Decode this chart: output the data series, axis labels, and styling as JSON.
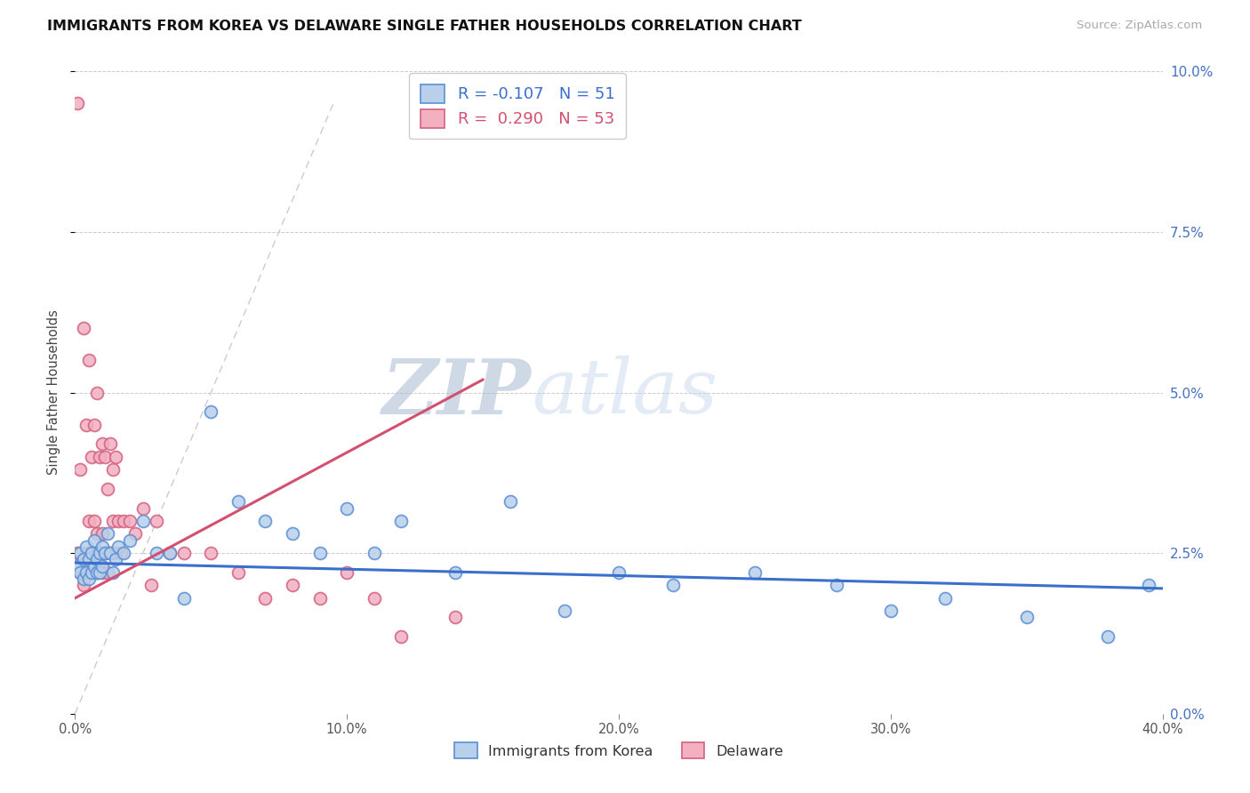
{
  "title": "IMMIGRANTS FROM KOREA VS DELAWARE SINGLE FATHER HOUSEHOLDS CORRELATION CHART",
  "source": "Source: ZipAtlas.com",
  "ylabel": "Single Father Households",
  "legend_label_1": "Immigrants from Korea",
  "legend_label_2": "Delaware",
  "R1": -0.107,
  "N1": 51,
  "R2": 0.29,
  "N2": 53,
  "color_korea_fill": "#b8d0ea",
  "color_korea_edge": "#5b8fd4",
  "color_delaware_fill": "#f2b0c0",
  "color_delaware_edge": "#d46080",
  "color_korea_line": "#3b6fcc",
  "color_delaware_line": "#d45070",
  "color_diag_line": "#cccccc",
  "watermark_zip": "ZIP",
  "watermark_atlas": "atlas",
  "xlim": [
    0.0,
    0.4
  ],
  "ylim": [
    0.0,
    0.1
  ],
  "korea_x": [
    0.001,
    0.002,
    0.002,
    0.003,
    0.003,
    0.004,
    0.004,
    0.005,
    0.005,
    0.006,
    0.006,
    0.007,
    0.007,
    0.008,
    0.008,
    0.009,
    0.009,
    0.01,
    0.01,
    0.011,
    0.012,
    0.013,
    0.014,
    0.015,
    0.016,
    0.018,
    0.02,
    0.025,
    0.03,
    0.035,
    0.04,
    0.05,
    0.06,
    0.07,
    0.08,
    0.09,
    0.1,
    0.11,
    0.12,
    0.14,
    0.16,
    0.18,
    0.2,
    0.22,
    0.25,
    0.28,
    0.3,
    0.32,
    0.35,
    0.38,
    0.395
  ],
  "korea_y": [
    0.023,
    0.025,
    0.022,
    0.024,
    0.021,
    0.026,
    0.022,
    0.024,
    0.021,
    0.025,
    0.022,
    0.027,
    0.023,
    0.022,
    0.024,
    0.025,
    0.022,
    0.026,
    0.023,
    0.025,
    0.028,
    0.025,
    0.022,
    0.024,
    0.026,
    0.025,
    0.027,
    0.03,
    0.025,
    0.025,
    0.018,
    0.047,
    0.033,
    0.03,
    0.028,
    0.025,
    0.032,
    0.025,
    0.03,
    0.022,
    0.033,
    0.016,
    0.022,
    0.02,
    0.022,
    0.02,
    0.016,
    0.018,
    0.015,
    0.012,
    0.02
  ],
  "delaware_x": [
    0.001,
    0.001,
    0.002,
    0.002,
    0.003,
    0.003,
    0.004,
    0.004,
    0.005,
    0.005,
    0.005,
    0.006,
    0.006,
    0.007,
    0.007,
    0.007,
    0.008,
    0.008,
    0.008,
    0.009,
    0.009,
    0.01,
    0.01,
    0.01,
    0.011,
    0.011,
    0.012,
    0.012,
    0.013,
    0.013,
    0.014,
    0.014,
    0.015,
    0.015,
    0.016,
    0.017,
    0.018,
    0.02,
    0.022,
    0.025,
    0.028,
    0.03,
    0.035,
    0.04,
    0.05,
    0.06,
    0.07,
    0.08,
    0.09,
    0.1,
    0.11,
    0.12,
    0.14
  ],
  "delaware_y": [
    0.095,
    0.025,
    0.038,
    0.022,
    0.06,
    0.02,
    0.045,
    0.025,
    0.055,
    0.03,
    0.022,
    0.04,
    0.025,
    0.045,
    0.03,
    0.025,
    0.05,
    0.028,
    0.022,
    0.04,
    0.025,
    0.042,
    0.028,
    0.022,
    0.04,
    0.025,
    0.035,
    0.022,
    0.042,
    0.025,
    0.038,
    0.03,
    0.04,
    0.025,
    0.03,
    0.025,
    0.03,
    0.03,
    0.028,
    0.032,
    0.02,
    0.03,
    0.025,
    0.025,
    0.025,
    0.022,
    0.018,
    0.02,
    0.018,
    0.022,
    0.018,
    0.012,
    0.015
  ],
  "korea_regline_x": [
    0.0,
    0.4
  ],
  "korea_regline_y": [
    0.0235,
    0.0195
  ],
  "delaware_regline_x": [
    0.0,
    0.15
  ],
  "delaware_regline_y": [
    0.018,
    0.052
  ],
  "diag_line_x": [
    0.0,
    0.095
  ],
  "diag_line_y": [
    0.0,
    0.095
  ]
}
